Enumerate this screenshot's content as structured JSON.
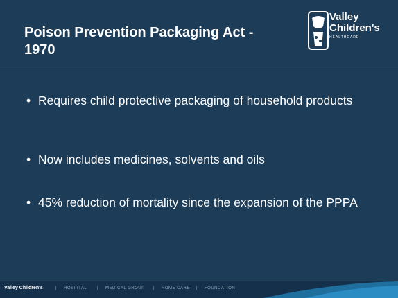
{
  "header": {
    "title": "Poison Prevention Packaging Act - 1970",
    "logo": {
      "line1": "Valley",
      "line2": "Children's",
      "line3": "HEALTHCARE"
    }
  },
  "bullets": [
    "Requires child protective packaging of household products",
    "Now includes medicines, solvents and oils",
    "45% reduction of mortality since the expansion of the PPPA"
  ],
  "footer": {
    "brand": "Valley Children's",
    "items": [
      "HOSPITAL",
      "MEDICAL GROUP",
      "HOME CARE",
      "FOUNDATION"
    ]
  }
}
